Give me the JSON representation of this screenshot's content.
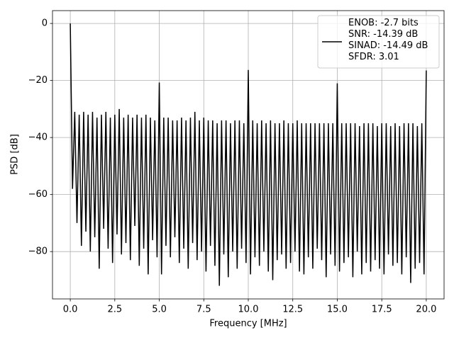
{
  "chart_data": {
    "type": "line",
    "xlabel": "Frequency [MHz]",
    "ylabel": "PSD [dB]",
    "xlim": [
      -1.0,
      21.0
    ],
    "ylim": [
      -96.6,
      4.5
    ],
    "xticks": [
      {
        "value": 0,
        "label": "0.0"
      },
      {
        "value": 2.5,
        "label": "2.5"
      },
      {
        "value": 5,
        "label": "5.0"
      },
      {
        "value": 7.5,
        "label": "7.5"
      },
      {
        "value": 10,
        "label": "10.0"
      },
      {
        "value": 12.5,
        "label": "12.5"
      },
      {
        "value": 15,
        "label": "15.0"
      },
      {
        "value": 17.5,
        "label": "17.5"
      },
      {
        "value": 20,
        "label": "20.0"
      }
    ],
    "yticks": [
      {
        "value": 0,
        "label": "0"
      },
      {
        "value": -20,
        "label": "−20"
      },
      {
        "value": -40,
        "label": "−40"
      },
      {
        "value": -60,
        "label": "−60"
      },
      {
        "value": -80,
        "label": "−80"
      }
    ],
    "grid": true,
    "legend": "upper right",
    "x": [
      0,
      0.125,
      0.25,
      0.375,
      0.5,
      0.625,
      0.75,
      0.875,
      1,
      1.125,
      1.25,
      1.375,
      1.5,
      1.625,
      1.75,
      1.875,
      2,
      2.125,
      2.25,
      2.375,
      2.5,
      2.625,
      2.75,
      2.875,
      3,
      3.125,
      3.25,
      3.375,
      3.5,
      3.625,
      3.75,
      3.875,
      4,
      4.125,
      4.25,
      4.375,
      4.5,
      4.625,
      4.75,
      4.875,
      5,
      5.125,
      5.25,
      5.375,
      5.5,
      5.625,
      5.75,
      5.875,
      6,
      6.125,
      6.25,
      6.375,
      6.5,
      6.625,
      6.75,
      6.875,
      7,
      7.125,
      7.25,
      7.375,
      7.5,
      7.625,
      7.75,
      7.875,
      8,
      8.125,
      8.25,
      8.375,
      8.5,
      8.625,
      8.75,
      8.875,
      9,
      9.125,
      9.25,
      9.375,
      9.5,
      9.625,
      9.75,
      9.875,
      10,
      10.125,
      10.25,
      10.375,
      10.5,
      10.625,
      10.75,
      10.875,
      11,
      11.125,
      11.25,
      11.375,
      11.5,
      11.625,
      11.75,
      11.875,
      12,
      12.125,
      12.25,
      12.375,
      12.5,
      12.625,
      12.75,
      12.875,
      13,
      13.125,
      13.25,
      13.375,
      13.5,
      13.625,
      13.75,
      13.875,
      14,
      14.125,
      14.25,
      14.375,
      14.5,
      14.625,
      14.75,
      14.875,
      15,
      15.125,
      15.25,
      15.375,
      15.5,
      15.625,
      15.75,
      15.875,
      16,
      16.125,
      16.25,
      16.375,
      16.5,
      16.625,
      16.75,
      16.875,
      17,
      17.125,
      17.25,
      17.375,
      17.5,
      17.625,
      17.75,
      17.875,
      18,
      18.125,
      18.25,
      18.375,
      18.5,
      18.625,
      18.75,
      18.875,
      19,
      19.125,
      19.25,
      19.375,
      19.5,
      19.625,
      19.75,
      19.875,
      20
    ],
    "series": [
      {
        "name": "ENOB: -2.7 bits\nSNR: -14.39 dB\nSINAD: -14.49 dB\nSFDR: 3.01",
        "color": "#000000",
        "values": [
          0,
          -58,
          -31,
          -70,
          -32,
          -78,
          -31,
          -73,
          -32,
          -80,
          -31,
          -75,
          -33,
          -86,
          -32,
          -72,
          -31,
          -79,
          -33,
          -84,
          -32,
          -74,
          -30,
          -81,
          -33,
          -77,
          -32,
          -83,
          -33,
          -71,
          -32,
          -85,
          -33,
          -79,
          -32,
          -88,
          -33,
          -76,
          -34,
          -82,
          -20.7,
          -88,
          -33,
          -78,
          -33,
          -82,
          -34,
          -75,
          -34,
          -84,
          -33,
          -79,
          -34,
          -86,
          -33,
          -77,
          -31,
          -83,
          -34,
          -80,
          -33,
          -87,
          -34,
          -78,
          -34,
          -85,
          -35,
          -92,
          -34,
          -81,
          -34,
          -89,
          -35,
          -80,
          -34,
          -86,
          -34,
          -79,
          -35,
          -84,
          -16.3,
          -88,
          -34,
          -82,
          -35,
          -85,
          -34,
          -80,
          -35,
          -87,
          -34,
          -90,
          -35,
          -83,
          -35,
          -81,
          -34,
          -86,
          -35,
          -84,
          -35,
          -80,
          -34,
          -87,
          -35,
          -88,
          -35,
          -82,
          -35,
          -86,
          -35,
          -79,
          -35,
          -83,
          -35,
          -89,
          -35,
          -81,
          -35,
          -85,
          -21,
          -87,
          -35,
          -84,
          -35,
          -82,
          -35,
          -89,
          -35,
          -80,
          -36,
          -88,
          -35,
          -84,
          -35,
          -87,
          -35,
          -83,
          -36,
          -86,
          -35,
          -88,
          -35,
          -81,
          -36,
          -85,
          -35,
          -84,
          -36,
          -88,
          -35,
          -82,
          -35,
          -91,
          -35,
          -86,
          -36,
          -84,
          -35,
          -88,
          -16.5
        ]
      }
    ]
  }
}
